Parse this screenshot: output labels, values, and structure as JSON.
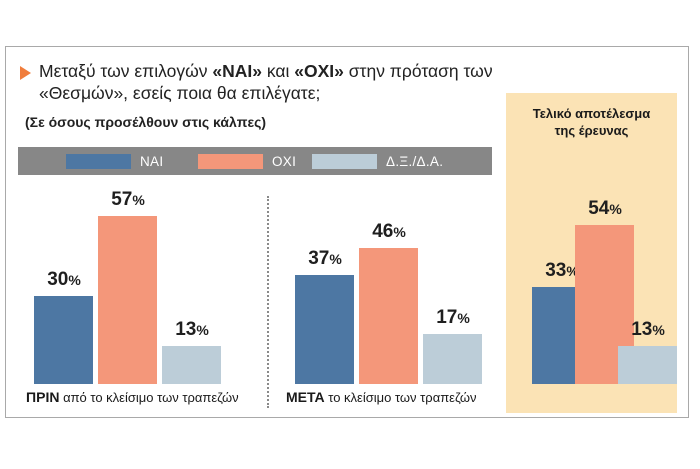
{
  "question": {
    "part1": "Μεταξύ των επιλογών ",
    "yes": "«ΝΑΙ»",
    "part2": " και ",
    "no": "«ΟΧΙ»",
    "part3": " στην πρόταση των «Θεσμών», εσείς ποια θα επιλέγατε;",
    "subtitle": "(Σε όσους προσέλθουν στις κάλπες)"
  },
  "legend": [
    {
      "label": "ΝΑΙ",
      "color": "#4d77a3"
    },
    {
      "label": "ΟΧΙ",
      "color": "#f4977a"
    },
    {
      "label": "Δ.Ξ./Δ.Α.",
      "color": "#bccdd8"
    }
  ],
  "final_heading": "Τελικό αποτέλεσμα\nτης έρευνας",
  "captions": [
    {
      "bold": "ΠΡΙΝ",
      "rest": " από το κλείσιμο των τραπεζών"
    },
    {
      "bold": "ΜΕΤΑ",
      "rest": " το κλείσιμο των τραπεζών"
    },
    {
      "bold": "",
      "rest": ""
    }
  ],
  "percent_sign": "%",
  "colors": {
    "nai": "#4d77a3",
    "oxi": "#f4977a",
    "dxda": "#bccdd8",
    "panel": "#fbe3b5",
    "legend_bg": "#878787",
    "arrow": "#f07d3c"
  },
  "chart_data": {
    "type": "bar",
    "categories": [
      "ΠΡΙΝ από το κλείσιμο των τραπεζών",
      "ΜΕΤΑ το κλείσιμο των τραπεζών",
      "Τελικό αποτέλεσμα της έρευνας"
    ],
    "series": [
      {
        "name": "ΝΑΙ",
        "values": [
          30,
          37,
          33
        ]
      },
      {
        "name": "ΟΧΙ",
        "values": [
          57,
          46,
          54
        ]
      },
      {
        "name": "Δ.Ξ./Δ.Α.",
        "values": [
          13,
          17,
          13
        ]
      }
    ],
    "unit": "%",
    "title": "Μεταξύ των επιλογών «ΝΑΙ» και «ΟΧΙ» στην πρόταση των «Θεσμών», εσείς ποια θα επιλέγατε;",
    "subtitle": "(Σε όσους προσέλθουν στις κάλπες)",
    "legend_position": "top",
    "grid": false
  }
}
